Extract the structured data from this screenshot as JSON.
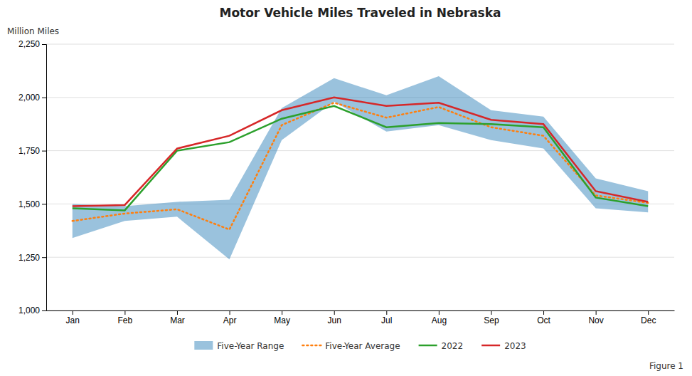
{
  "chart_data": {
    "type": "line",
    "title": "Motor Vehicle Miles Traveled in Nebraska",
    "y_label": "Million Miles",
    "categories": [
      "Jan",
      "Feb",
      "Mar",
      "Apr",
      "May",
      "Jun",
      "Jul",
      "Aug",
      "Sep",
      "Oct",
      "Nov",
      "Dec"
    ],
    "ylim": [
      1000,
      2250
    ],
    "yticks": [
      {
        "value": 1000,
        "label": "1,000"
      },
      {
        "value": 1250,
        "label": "1,250"
      },
      {
        "value": 1500,
        "label": "1,500"
      },
      {
        "value": 1750,
        "label": "1,750"
      },
      {
        "value": 2000,
        "label": "2,000"
      },
      {
        "value": 2250,
        "label": "2,250"
      }
    ],
    "grid": true,
    "legend": "bottom",
    "series": [
      {
        "name": "Five-Year Range",
        "type": "area",
        "low": [
          1340,
          1420,
          1440,
          1240,
          1800,
          1980,
          1840,
          1870,
          1800,
          1760,
          1480,
          1460
        ],
        "high": [
          1500,
          1490,
          1510,
          1520,
          1950,
          2090,
          2010,
          2100,
          1940,
          1910,
          1620,
          1560
        ]
      },
      {
        "name": "Five-Year Average",
        "type": "line",
        "line_style": "dotted",
        "values": [
          1420,
          1455,
          1475,
          1380,
          1870,
          1975,
          1905,
          1955,
          1860,
          1820,
          1540,
          1505
        ]
      },
      {
        "name": "2022",
        "type": "line",
        "line_style": "solid",
        "values": [
          1480,
          1470,
          1750,
          1790,
          1900,
          1960,
          1860,
          1880,
          1875,
          1860,
          1530,
          1490
        ]
      },
      {
        "name": "2023",
        "type": "line",
        "line_style": "solid",
        "values": [
          1490,
          1495,
          1760,
          1820,
          1940,
          2000,
          1960,
          1975,
          1895,
          1875,
          1560,
          1510
        ]
      }
    ],
    "annotations": [
      "Figure 1"
    ]
  }
}
